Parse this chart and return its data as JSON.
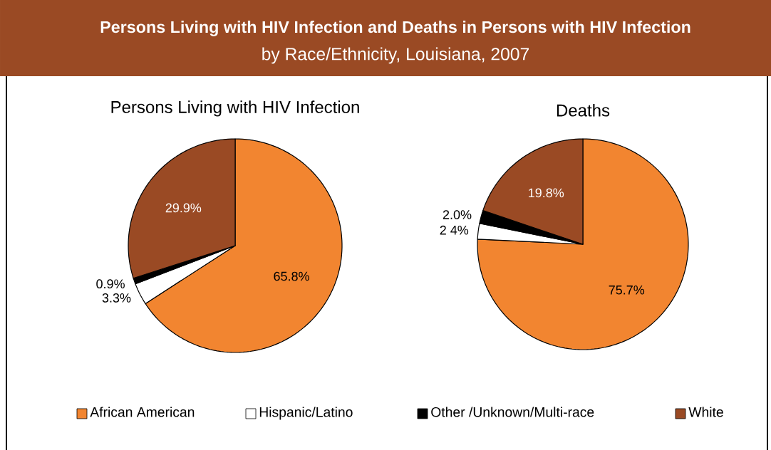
{
  "chart_data": [
    {
      "type": "pie",
      "title": "Persons Living with HIV Infection",
      "annotations": [
        "Persons Living with HIV Infection and Deaths in Persons with HIV Infection",
        "by Race/Ethnicity, Louisiana, 2007"
      ],
      "categories": [
        "African American",
        "Hispanic/Latino",
        "Other /Unknown/Multi-race",
        "White"
      ],
      "values": [
        65.8,
        3.3,
        0.9,
        29.9
      ],
      "value_labels": [
        "65.8%",
        "3.3%",
        "0.9%",
        "29.9%"
      ],
      "colors": [
        "#f28530",
        "#ffffff",
        "#000000",
        "#9a4a24"
      ],
      "legend": "bottom"
    },
    {
      "type": "pie",
      "title": "Deaths",
      "categories": [
        null,
        null,
        null,
        null
      ],
      "values": [
        75.7,
        2.4,
        2.0,
        19.8
      ],
      "value_labels": [
        "75.7%",
        "2 4%",
        "2.0%",
        "19.8%"
      ],
      "colors": [
        "#f28530",
        "#ffffff",
        "#000000",
        "#9a4a24"
      ]
    }
  ]
}
